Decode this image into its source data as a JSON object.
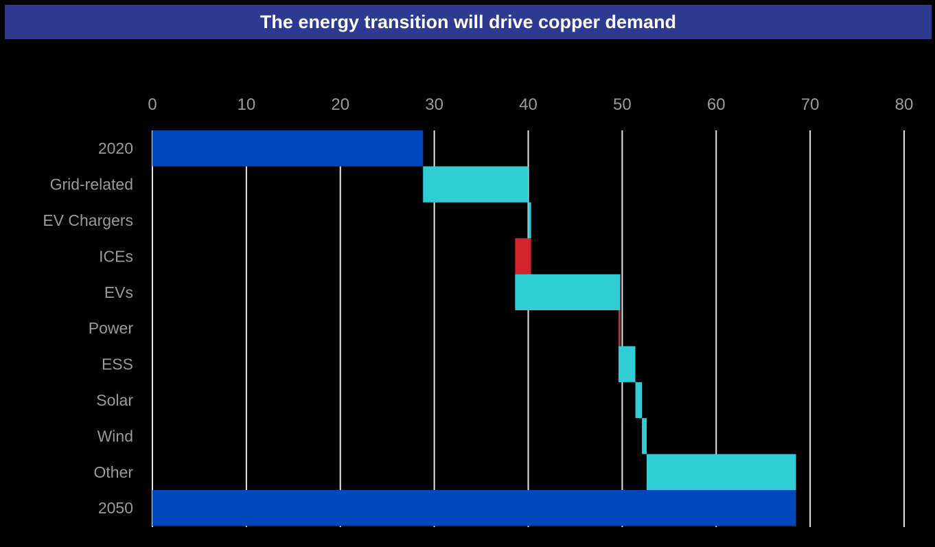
{
  "chart_data": {
    "type": "bar",
    "subtype": "waterfall",
    "orientation": "horizontal",
    "title": "The energy transition will drive copper demand",
    "xlim": [
      0,
      80
    ],
    "xticks": [
      0,
      10,
      20,
      30,
      40,
      50,
      60,
      70,
      80
    ],
    "grid": true,
    "axis_position": "top",
    "colors": {
      "background": "#000000",
      "title_bar": "#2e3a8f",
      "total": "#0047bb",
      "increase": "#30cdd5",
      "decrease": "#d0252f",
      "grid": "#e8e8e8",
      "text": "#9a9a9a"
    },
    "bars": [
      {
        "category": "2020",
        "start": 0,
        "end": 28.8,
        "kind": "total"
      },
      {
        "category": "Grid-related",
        "start": 28.8,
        "end": 40.0,
        "kind": "increase"
      },
      {
        "category": "EV Chargers",
        "start": 40.0,
        "end": 40.3,
        "kind": "increase"
      },
      {
        "category": "ICEs",
        "start": 40.3,
        "end": 38.6,
        "kind": "decrease"
      },
      {
        "category": "EVs",
        "start": 38.6,
        "end": 49.8,
        "kind": "increase"
      },
      {
        "category": "Power",
        "start": 49.8,
        "end": 49.6,
        "kind": "decrease"
      },
      {
        "category": "ESS",
        "start": 49.6,
        "end": 51.4,
        "kind": "increase"
      },
      {
        "category": "Solar",
        "start": 51.4,
        "end": 52.1,
        "kind": "increase"
      },
      {
        "category": "Wind",
        "start": 52.1,
        "end": 52.6,
        "kind": "increase"
      },
      {
        "category": "Other",
        "start": 52.6,
        "end": 68.5,
        "kind": "increase"
      },
      {
        "category": "2050",
        "start": 0,
        "end": 68.5,
        "kind": "total"
      }
    ]
  }
}
